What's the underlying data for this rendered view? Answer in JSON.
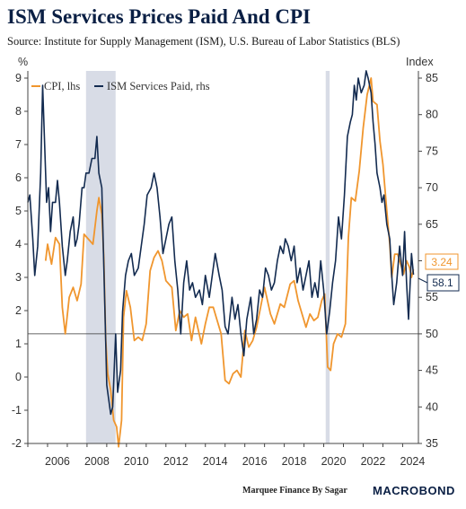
{
  "title": "ISM Services Prices Paid And CPI",
  "subtitle": "Source: Institute for Supply Management (ISM), U.S. Bureau of Labor Statistics (BLS)",
  "credit": "Marquee Finance By Sagar",
  "brand": "MACROBOND",
  "chart_data": {
    "type": "line",
    "y_left": {
      "unit": "%",
      "ticks": [
        "9",
        "8",
        "7",
        "6",
        "5",
        "4",
        "3",
        "2",
        "1",
        "0",
        "-1",
        "-2"
      ],
      "range": [
        -2,
        9
      ]
    },
    "y_right": {
      "unit": "Index",
      "ticks": [
        "85",
        "80",
        "75",
        "70",
        "65",
        "60",
        "55",
        "50",
        "45",
        "40",
        "35"
      ],
      "range": [
        35,
        85
      ]
    },
    "x": {
      "ticks": [
        "2006",
        "2008",
        "2010",
        "2012",
        "2014",
        "2016",
        "2018",
        "2020",
        "2022",
        "2024"
      ],
      "range": [
        2005.0,
        2024.8
      ]
    },
    "recessions": [
      [
        2007.95,
        2009.45
      ],
      [
        2020.1,
        2020.3
      ]
    ],
    "reference_line_left": 1.3,
    "legend": [
      "CPI, lhs",
      "ISM Services Paid, rhs"
    ],
    "colors": {
      "cpi": "#f0962e",
      "ism": "#132b50",
      "recession": "#d8dce6"
    },
    "end_labels": {
      "cpi": "3.24",
      "ism": "58.1"
    },
    "series": [
      {
        "name": "CPI, lhs",
        "axis": "left",
        "points": [
          [
            2005.9,
            3.5
          ],
          [
            2006.0,
            4.0
          ],
          [
            2006.2,
            3.4
          ],
          [
            2006.4,
            4.2
          ],
          [
            2006.6,
            4.0
          ],
          [
            2006.75,
            2.1
          ],
          [
            2006.9,
            1.3
          ],
          [
            2007.1,
            2.4
          ],
          [
            2007.3,
            2.7
          ],
          [
            2007.5,
            2.3
          ],
          [
            2007.7,
            2.8
          ],
          [
            2007.85,
            4.3
          ],
          [
            2008.0,
            4.2
          ],
          [
            2008.3,
            4.0
          ],
          [
            2008.5,
            5.0
          ],
          [
            2008.6,
            5.4
          ],
          [
            2008.75,
            4.9
          ],
          [
            2008.85,
            3.6
          ],
          [
            2008.95,
            1.1
          ],
          [
            2009.05,
            0.1
          ],
          [
            2009.2,
            -0.4
          ],
          [
            2009.35,
            -1.3
          ],
          [
            2009.5,
            -1.5
          ],
          [
            2009.6,
            -2.1
          ],
          [
            2009.75,
            -1.3
          ],
          [
            2009.85,
            1.8
          ],
          [
            2010.0,
            2.6
          ],
          [
            2010.2,
            2.1
          ],
          [
            2010.4,
            1.1
          ],
          [
            2010.6,
            1.2
          ],
          [
            2010.8,
            1.1
          ],
          [
            2011.0,
            1.6
          ],
          [
            2011.2,
            3.2
          ],
          [
            2011.4,
            3.6
          ],
          [
            2011.6,
            3.8
          ],
          [
            2011.8,
            3.5
          ],
          [
            2012.0,
            2.9
          ],
          [
            2012.3,
            2.7
          ],
          [
            2012.5,
            1.4
          ],
          [
            2012.7,
            2.0
          ],
          [
            2012.9,
            1.8
          ],
          [
            2013.1,
            1.9
          ],
          [
            2013.3,
            1.1
          ],
          [
            2013.5,
            1.8
          ],
          [
            2013.8,
            1.0
          ],
          [
            2014.0,
            1.6
          ],
          [
            2014.2,
            2.1
          ],
          [
            2014.4,
            2.1
          ],
          [
            2014.6,
            1.7
          ],
          [
            2014.8,
            1.3
          ],
          [
            2015.0,
            -0.1
          ],
          [
            2015.2,
            -0.2
          ],
          [
            2015.4,
            0.1
          ],
          [
            2015.6,
            0.2
          ],
          [
            2015.8,
            0.0
          ],
          [
            2016.0,
            1.4
          ],
          [
            2016.2,
            0.9
          ],
          [
            2016.4,
            1.1
          ],
          [
            2016.6,
            1.5
          ],
          [
            2016.8,
            2.1
          ],
          [
            2017.0,
            2.7
          ],
          [
            2017.3,
            1.9
          ],
          [
            2017.5,
            1.6
          ],
          [
            2017.8,
            2.2
          ],
          [
            2018.0,
            2.1
          ],
          [
            2018.3,
            2.8
          ],
          [
            2018.5,
            2.9
          ],
          [
            2018.7,
            2.3
          ],
          [
            2018.9,
            1.9
          ],
          [
            2019.1,
            1.5
          ],
          [
            2019.3,
            1.9
          ],
          [
            2019.5,
            1.7
          ],
          [
            2019.7,
            1.8
          ],
          [
            2019.9,
            2.3
          ],
          [
            2020.05,
            2.5
          ],
          [
            2020.2,
            0.3
          ],
          [
            2020.35,
            0.2
          ],
          [
            2020.5,
            1.0
          ],
          [
            2020.7,
            1.3
          ],
          [
            2020.9,
            1.2
          ],
          [
            2021.1,
            1.6
          ],
          [
            2021.25,
            4.2
          ],
          [
            2021.4,
            5.4
          ],
          [
            2021.6,
            5.3
          ],
          [
            2021.8,
            6.2
          ],
          [
            2022.0,
            7.5
          ],
          [
            2022.2,
            8.5
          ],
          [
            2022.4,
            9.0
          ],
          [
            2022.5,
            8.3
          ],
          [
            2022.7,
            8.2
          ],
          [
            2022.85,
            7.1
          ],
          [
            2023.0,
            6.4
          ],
          [
            2023.2,
            5.0
          ],
          [
            2023.35,
            4.0
          ],
          [
            2023.45,
            3.0
          ],
          [
            2023.6,
            3.7
          ],
          [
            2023.75,
            3.7
          ],
          [
            2023.9,
            3.4
          ],
          [
            2024.05,
            3.1
          ],
          [
            2024.2,
            3.5
          ],
          [
            2024.35,
            3.3
          ],
          [
            2024.45,
            3.0
          ],
          [
            2024.55,
            3.24
          ]
        ]
      },
      {
        "name": "ISM Services Paid, rhs",
        "axis": "right",
        "points": [
          [
            2005.0,
            68
          ],
          [
            2005.1,
            69
          ],
          [
            2005.25,
            63
          ],
          [
            2005.35,
            58
          ],
          [
            2005.5,
            62
          ],
          [
            2005.65,
            72
          ],
          [
            2005.75,
            84
          ],
          [
            2005.85,
            76
          ],
          [
            2005.95,
            68
          ],
          [
            2006.05,
            70
          ],
          [
            2006.15,
            64
          ],
          [
            2006.25,
            68
          ],
          [
            2006.4,
            68
          ],
          [
            2006.5,
            71
          ],
          [
            2006.6,
            68
          ],
          [
            2006.75,
            62
          ],
          [
            2006.9,
            58
          ],
          [
            2007.0,
            60
          ],
          [
            2007.15,
            64
          ],
          [
            2007.3,
            66
          ],
          [
            2007.4,
            62
          ],
          [
            2007.5,
            63
          ],
          [
            2007.6,
            65
          ],
          [
            2007.75,
            70
          ],
          [
            2007.85,
            70
          ],
          [
            2007.95,
            72
          ],
          [
            2008.1,
            72
          ],
          [
            2008.25,
            74
          ],
          [
            2008.4,
            74
          ],
          [
            2008.5,
            77
          ],
          [
            2008.6,
            72
          ],
          [
            2008.75,
            70
          ],
          [
            2008.9,
            54
          ],
          [
            2009.0,
            43
          ],
          [
            2009.1,
            41
          ],
          [
            2009.2,
            39
          ],
          [
            2009.3,
            40
          ],
          [
            2009.45,
            50
          ],
          [
            2009.55,
            42
          ],
          [
            2009.7,
            45
          ],
          [
            2009.8,
            53
          ],
          [
            2009.95,
            58
          ],
          [
            2010.1,
            60
          ],
          [
            2010.25,
            61
          ],
          [
            2010.4,
            58
          ],
          [
            2010.6,
            59
          ],
          [
            2010.75,
            62
          ],
          [
            2010.9,
            65
          ],
          [
            2011.05,
            69
          ],
          [
            2011.25,
            70
          ],
          [
            2011.4,
            72
          ],
          [
            2011.55,
            70
          ],
          [
            2011.7,
            66
          ],
          [
            2011.85,
            61
          ],
          [
            2012.0,
            63
          ],
          [
            2012.15,
            65
          ],
          [
            2012.3,
            66
          ],
          [
            2012.45,
            60
          ],
          [
            2012.6,
            56
          ],
          [
            2012.75,
            50
          ],
          [
            2012.9,
            57
          ],
          [
            2013.05,
            60
          ],
          [
            2013.2,
            56
          ],
          [
            2013.35,
            57
          ],
          [
            2013.5,
            55
          ],
          [
            2013.7,
            56
          ],
          [
            2013.85,
            54
          ],
          [
            2014.0,
            58
          ],
          [
            2014.2,
            55
          ],
          [
            2014.35,
            58
          ],
          [
            2014.5,
            61
          ],
          [
            2014.7,
            58
          ],
          [
            2014.85,
            56
          ],
          [
            2015.0,
            51
          ],
          [
            2015.15,
            50
          ],
          [
            2015.35,
            55
          ],
          [
            2015.5,
            52
          ],
          [
            2015.65,
            54
          ],
          [
            2015.8,
            50
          ],
          [
            2015.95,
            47
          ],
          [
            2016.1,
            52
          ],
          [
            2016.3,
            55
          ],
          [
            2016.45,
            50
          ],
          [
            2016.6,
            52
          ],
          [
            2016.75,
            56
          ],
          [
            2016.9,
            55
          ],
          [
            2017.05,
            59
          ],
          [
            2017.2,
            58
          ],
          [
            2017.35,
            56
          ],
          [
            2017.5,
            57
          ],
          [
            2017.65,
            60
          ],
          [
            2017.8,
            62
          ],
          [
            2017.95,
            61
          ],
          [
            2018.05,
            63
          ],
          [
            2018.2,
            62
          ],
          [
            2018.35,
            60
          ],
          [
            2018.5,
            62
          ],
          [
            2018.65,
            57
          ],
          [
            2018.8,
            59
          ],
          [
            2018.95,
            56
          ],
          [
            2019.1,
            58
          ],
          [
            2019.25,
            60
          ],
          [
            2019.4,
            55
          ],
          [
            2019.55,
            57
          ],
          [
            2019.7,
            55
          ],
          [
            2019.85,
            60
          ],
          [
            2020.0,
            56
          ],
          [
            2020.15,
            50
          ],
          [
            2020.3,
            53
          ],
          [
            2020.45,
            57
          ],
          [
            2020.6,
            60
          ],
          [
            2020.75,
            66
          ],
          [
            2020.9,
            63
          ],
          [
            2021.05,
            69
          ],
          [
            2021.2,
            77
          ],
          [
            2021.35,
            79
          ],
          [
            2021.45,
            80
          ],
          [
            2021.55,
            84
          ],
          [
            2021.65,
            82
          ],
          [
            2021.75,
            85
          ],
          [
            2021.9,
            83
          ],
          [
            2022.05,
            84
          ],
          [
            2022.15,
            86
          ],
          [
            2022.25,
            85
          ],
          [
            2022.4,
            83
          ],
          [
            2022.5,
            79
          ],
          [
            2022.6,
            76
          ],
          [
            2022.7,
            72
          ],
          [
            2022.85,
            70
          ],
          [
            2022.95,
            68
          ],
          [
            2023.05,
            69
          ],
          [
            2023.2,
            65
          ],
          [
            2023.35,
            63
          ],
          [
            2023.45,
            58
          ],
          [
            2023.55,
            54
          ],
          [
            2023.7,
            57
          ],
          [
            2023.85,
            62
          ],
          [
            2024.0,
            58
          ],
          [
            2024.1,
            64
          ],
          [
            2024.2,
            57
          ],
          [
            2024.3,
            52
          ],
          [
            2024.45,
            61
          ],
          [
            2024.55,
            58.1
          ]
        ]
      }
    ]
  }
}
